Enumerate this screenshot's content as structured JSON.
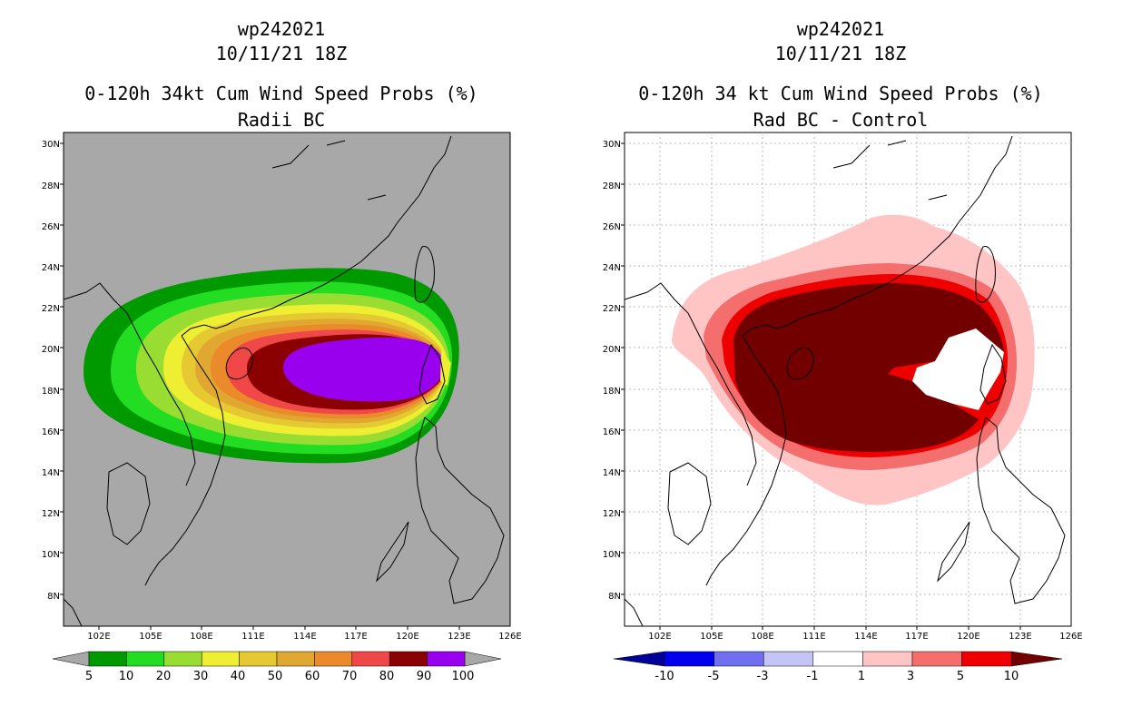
{
  "left_panel": {
    "storm_id": "wp242021",
    "datetime": "10/11/21 18Z",
    "title": "0-120h 34kt Cum Wind Speed Probs (%)",
    "subtitle": "Radii BC",
    "colors": {
      "background": "#a8a8a8"
    },
    "colorbar": {
      "labels": [
        "5",
        "10",
        "20",
        "30",
        "40",
        "50",
        "60",
        "70",
        "80",
        "90",
        "100"
      ],
      "colors": [
        "#009900",
        "#22dd22",
        "#99dd33",
        "#eeee33",
        "#e6c833",
        "#e0a830",
        "#ea8a2a",
        "#f04848",
        "#8b0000",
        "#9900ee"
      ]
    }
  },
  "right_panel": {
    "storm_id": "wp242021",
    "datetime": "10/11/21 18Z",
    "title": "0-120h 34 kt Cum Wind Speed Probs (%)",
    "subtitle": "Rad BC - Control",
    "colors": {
      "background": "#ffffff"
    },
    "colorbar": {
      "labels": [
        "-10",
        "-5",
        "-3",
        "-1",
        "1",
        "3",
        "5",
        "10"
      ],
      "colors": [
        "#000099",
        "#0000ee",
        "#6f6ff0",
        "#c4c4f6",
        "#ffffff",
        "#ffc4c4",
        "#f46e6e",
        "#ee0000",
        "#730000"
      ]
    }
  },
  "map": {
    "lat_labels": [
      "30N",
      "28N",
      "26N",
      "24N",
      "22N",
      "20N",
      "18N",
      "16N",
      "14N",
      "12N",
      "10N",
      "8N"
    ],
    "lon_labels": [
      "102E",
      "105E",
      "108E",
      "111E",
      "114E",
      "117E",
      "120E",
      "123E",
      "126E"
    ]
  }
}
